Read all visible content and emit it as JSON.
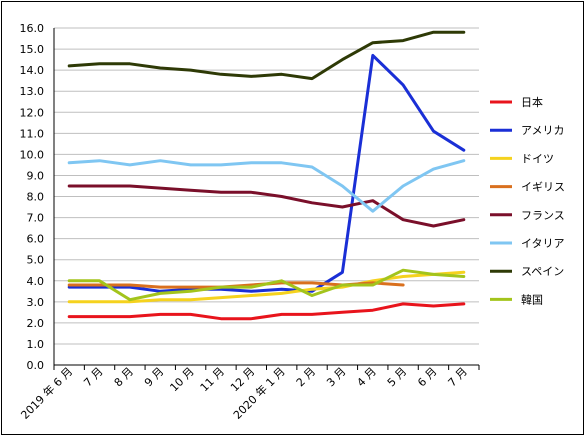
{
  "chart_data": {
    "type": "line",
    "title": "",
    "xlabel": "",
    "ylabel": "",
    "categories": [
      "2019 年 6 月",
      "7 月",
      "8 月",
      "9 月",
      "10 月",
      "11 月",
      "12 月",
      "2020 年 1 月",
      "2 月",
      "3 月",
      "4 月",
      "5 月",
      "6 月",
      "7 月"
    ],
    "ylim": [
      0,
      16
    ],
    "ytick_step": 1,
    "ytick_labels": [
      "0.0",
      "1.0",
      "2.0",
      "3.0",
      "4.0",
      "5.0",
      "6.0",
      "7.0",
      "8.0",
      "9.0",
      "10.0",
      "11.0",
      "12.0",
      "13.0",
      "14.0",
      "15.0",
      "16.0"
    ],
    "grid": true,
    "legend_position": "right",
    "series": [
      {
        "name": "日本",
        "color": "#e8141c",
        "values": [
          2.3,
          2.3,
          2.3,
          2.4,
          2.4,
          2.2,
          2.2,
          2.4,
          2.4,
          2.5,
          2.6,
          2.9,
          2.8,
          2.9
        ]
      },
      {
        "name": "アメリカ",
        "color": "#1a2fd6",
        "values": [
          3.7,
          3.7,
          3.7,
          3.5,
          3.6,
          3.6,
          3.5,
          3.6,
          3.5,
          4.4,
          14.7,
          13.3,
          11.1,
          10.2
        ]
      },
      {
        "name": "ドイツ",
        "color": "#f5d21e",
        "values": [
          3.0,
          3.0,
          3.0,
          3.1,
          3.1,
          3.2,
          3.3,
          3.4,
          3.6,
          3.7,
          4.0,
          4.2,
          4.3,
          4.4
        ]
      },
      {
        "name": "イギリス",
        "color": "#d9701e",
        "values": [
          3.8,
          3.8,
          3.8,
          3.7,
          3.7,
          3.7,
          3.8,
          3.9,
          3.9,
          3.8,
          3.9,
          3.8,
          null,
          null
        ]
      },
      {
        "name": "フランス",
        "color": "#7a0f2a",
        "values": [
          8.5,
          8.5,
          8.5,
          8.4,
          8.3,
          8.2,
          8.2,
          8.0,
          7.7,
          7.5,
          7.8,
          6.9,
          6.6,
          6.9
        ]
      },
      {
        "name": "イタリア",
        "color": "#7fc6f2",
        "values": [
          9.6,
          9.7,
          9.5,
          9.7,
          9.5,
          9.5,
          9.6,
          9.6,
          9.4,
          8.5,
          7.3,
          8.5,
          9.3,
          9.7
        ]
      },
      {
        "name": "スペイン",
        "color": "#2e3a06",
        "values": [
          14.2,
          14.3,
          14.3,
          14.1,
          14.0,
          13.8,
          13.7,
          13.8,
          13.6,
          14.5,
          15.3,
          15.4,
          15.8,
          15.8
        ]
      },
      {
        "name": "韓国",
        "color": "#a3c41c",
        "values": [
          4.0,
          4.0,
          3.1,
          3.4,
          3.5,
          3.7,
          3.7,
          4.0,
          3.3,
          3.8,
          3.8,
          4.5,
          4.3,
          4.2
        ]
      }
    ]
  }
}
